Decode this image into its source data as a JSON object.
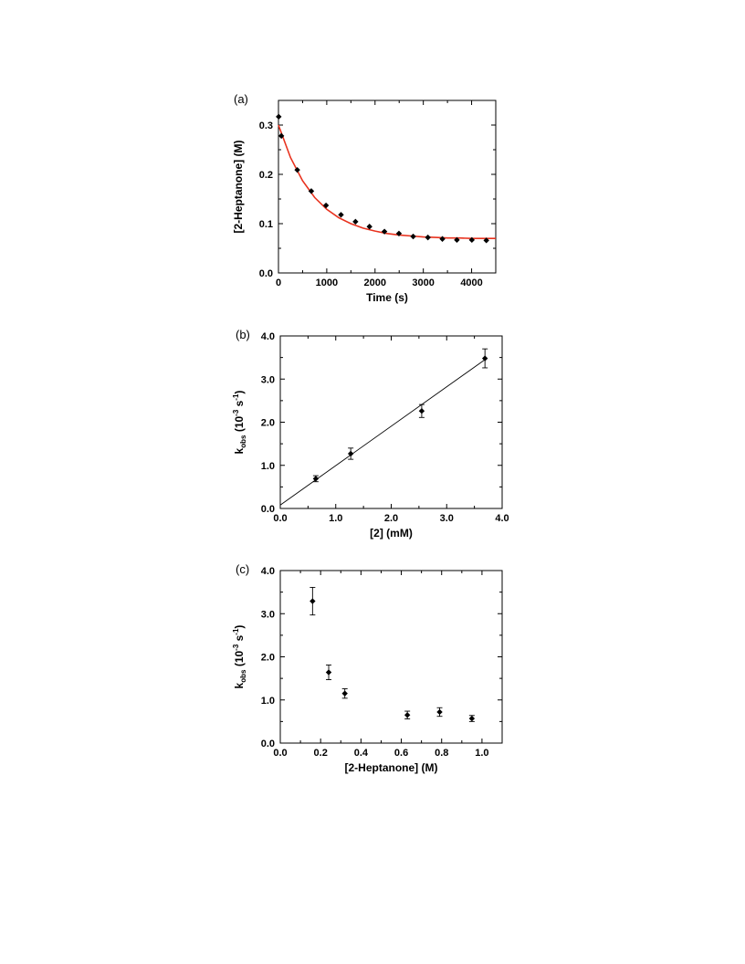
{
  "chart_data": [
    {
      "panel_label": "(a)",
      "type": "scatter",
      "xlabel": "Time (s)",
      "ylabel": "[2-Heptanone] (M)",
      "xlim": [
        0,
        4500
      ],
      "ylim": [
        0.0,
        0.35
      ],
      "xticks": [
        0,
        1000,
        2000,
        3000,
        4000
      ],
      "xtick_labels": [
        "0",
        "1000",
        "2000",
        "3000",
        "4000"
      ],
      "yticks": [
        0.0,
        0.1,
        0.2,
        0.3
      ],
      "ytick_labels": [
        "0.0",
        "0.1",
        "0.2",
        "0.3"
      ],
      "grid": false,
      "fit_color": "#e8321e",
      "points": [
        {
          "x": 5,
          "y": 0.317
        },
        {
          "x": 60,
          "y": 0.278
        },
        {
          "x": 390,
          "y": 0.209
        },
        {
          "x": 680,
          "y": 0.166
        },
        {
          "x": 985,
          "y": 0.137
        },
        {
          "x": 1295,
          "y": 0.118
        },
        {
          "x": 1595,
          "y": 0.104
        },
        {
          "x": 1885,
          "y": 0.094
        },
        {
          "x": 2195,
          "y": 0.084
        },
        {
          "x": 2495,
          "y": 0.08
        },
        {
          "x": 2790,
          "y": 0.074
        },
        {
          "x": 3095,
          "y": 0.072
        },
        {
          "x": 3395,
          "y": 0.069
        },
        {
          "x": 3695,
          "y": 0.067
        },
        {
          "x": 4005,
          "y": 0.067
        },
        {
          "x": 4305,
          "y": 0.066
        }
      ],
      "fit": {
        "model": "single exponential decay",
        "x": [
          0,
          250,
          500,
          750,
          1000,
          1250,
          1500,
          1750,
          2000,
          2250,
          2500,
          2750,
          3000,
          3250,
          3500,
          3750,
          4000,
          4250,
          4500
        ],
        "y": [
          0.3,
          0.234,
          0.187,
          0.153,
          0.129,
          0.112,
          0.1,
          0.091,
          0.085,
          0.08,
          0.077,
          0.075,
          0.073,
          0.072,
          0.071,
          0.071,
          0.07,
          0.07,
          0.07
        ]
      }
    },
    {
      "panel_label": "(b)",
      "type": "scatter",
      "xlabel": "[2] (mM)",
      "ylabel_main": "k",
      "ylabel_sub": "obs",
      "ylabel_mid": " (10",
      "ylabel_sup1": "-3",
      "ylabel_mid2": " s",
      "ylabel_sup2": "-1",
      "ylabel_end": ")",
      "xlim": [
        0.0,
        4.0
      ],
      "ylim": [
        0.0,
        4.0
      ],
      "xticks": [
        0.0,
        1.0,
        2.0,
        3.0,
        4.0
      ],
      "xtick_labels": [
        "0.0",
        "1.0",
        "2.0",
        "3.0",
        "4.0"
      ],
      "yticks": [
        0.0,
        1.0,
        2.0,
        3.0,
        4.0
      ],
      "ytick_labels": [
        "0.0",
        "1.0",
        "2.0",
        "3.0",
        "4.0"
      ],
      "grid": false,
      "points": [
        {
          "x": 0.64,
          "y": 0.69,
          "err": 0.07
        },
        {
          "x": 1.27,
          "y": 1.27,
          "err": 0.13
        },
        {
          "x": 2.55,
          "y": 2.26,
          "err": 0.15
        },
        {
          "x": 3.69,
          "y": 3.48,
          "err": 0.22
        }
      ],
      "fit": {
        "model": "linear",
        "x": [
          0.0,
          3.7
        ],
        "y": [
          0.08,
          3.46
        ]
      }
    },
    {
      "panel_label": "(c)",
      "type": "scatter",
      "xlabel": "[2-Heptanone] (M)",
      "ylabel_main": "k",
      "ylabel_sub": "obs",
      "ylabel_mid": " (10",
      "ylabel_sup1": "-3",
      "ylabel_mid2": " s",
      "ylabel_sup2": "-1",
      "ylabel_end": ")",
      "xlim": [
        0.0,
        1.1
      ],
      "ylim": [
        0.0,
        4.0
      ],
      "xticks": [
        0.0,
        0.2,
        0.4,
        0.6,
        0.8,
        1.0
      ],
      "xtick_labels": [
        "0.0",
        "0.2",
        "0.4",
        "0.6",
        "0.8",
        "1.0"
      ],
      "yticks": [
        0.0,
        1.0,
        2.0,
        3.0,
        4.0
      ],
      "ytick_labels": [
        "0.0",
        "1.0",
        "2.0",
        "3.0",
        "4.0"
      ],
      "grid": false,
      "points": [
        {
          "x": 0.16,
          "y": 3.29,
          "err": 0.32
        },
        {
          "x": 0.24,
          "y": 1.64,
          "err": 0.17
        },
        {
          "x": 0.32,
          "y": 1.15,
          "err": 0.11
        },
        {
          "x": 0.63,
          "y": 0.65,
          "err": 0.09
        },
        {
          "x": 0.79,
          "y": 0.72,
          "err": 0.1
        },
        {
          "x": 0.95,
          "y": 0.57,
          "err": 0.07
        }
      ]
    }
  ]
}
